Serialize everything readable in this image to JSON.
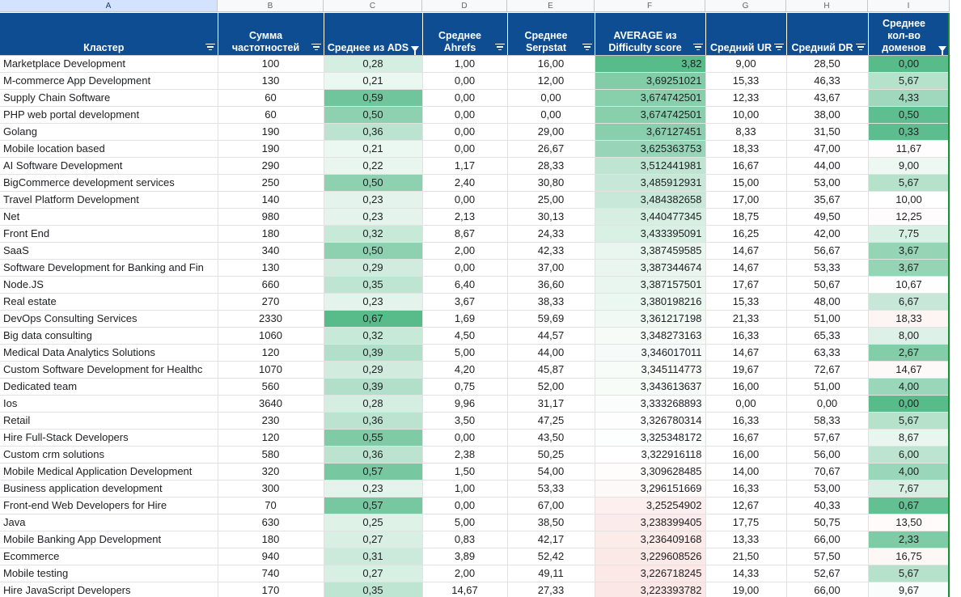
{
  "column_letters": [
    "A",
    "B",
    "C",
    "D",
    "E",
    "F",
    "G",
    "H",
    "I"
  ],
  "headers": [
    {
      "label": "Кластер",
      "filter": "lines"
    },
    {
      "label": "Сумма частотностей",
      "filter": "lines"
    },
    {
      "label": "Среднее из ADS",
      "filter": "funnel"
    },
    {
      "label": "Среднее Ahrefs",
      "filter": "lines"
    },
    {
      "label": "Среднее Serpstat",
      "filter": "lines"
    },
    {
      "label": "AVERAGE из Difficulty score",
      "filter": "lines"
    },
    {
      "label": "Средний UR",
      "filter": "lines"
    },
    {
      "label": "Средний DR",
      "filter": "lines"
    },
    {
      "label": "Среднее кол-во доменов",
      "filter": "funnel"
    }
  ],
  "colors": {
    "header_bg": "#0e4d92",
    "scale_green": "#57bb8a",
    "scale_white": "#ffffff",
    "scale_red": "#e67c73"
  },
  "rows": [
    [
      "Marketplace Development",
      "100",
      "0,28",
      "1,00",
      "16,00",
      "3,82",
      "9,00",
      "28,50",
      "0,00"
    ],
    [
      "M-commerce App Development",
      "130",
      "0,21",
      "0,00",
      "12,00",
      "3,69251021",
      "15,33",
      "46,33",
      "5,67"
    ],
    [
      "Supply Chain Software",
      "60",
      "0,59",
      "0,00",
      "0,00",
      "3,674742501",
      "12,33",
      "43,67",
      "4,33"
    ],
    [
      "PHP web portal development",
      "60",
      "0,50",
      "0,00",
      "0,00",
      "3,674742501",
      "10,00",
      "38,00",
      "0,50"
    ],
    [
      "Golang",
      "190",
      "0,36",
      "0,00",
      "29,00",
      "3,67127451",
      "8,33",
      "31,50",
      "0,33"
    ],
    [
      "Mobile location based",
      "190",
      "0,21",
      "0,00",
      "26,67",
      "3,625363753",
      "18,33",
      "47,00",
      "11,67"
    ],
    [
      "AI Software Development",
      "290",
      "0,22",
      "1,17",
      "28,33",
      "3,512441981",
      "16,67",
      "44,00",
      "9,00"
    ],
    [
      "BigCommerce development services",
      "250",
      "0,50",
      "2,40",
      "30,80",
      "3,485912931",
      "15,00",
      "53,00",
      "5,67"
    ],
    [
      "Travel Platform Development",
      "140",
      "0,23",
      "0,00",
      "25,00",
      "3,484382658",
      "17,00",
      "35,67",
      "10,00"
    ],
    [
      "Net",
      "980",
      "0,23",
      "2,13",
      "30,13",
      "3,440477345",
      "18,75",
      "49,50",
      "12,25"
    ],
    [
      "Front End",
      "180",
      "0,32",
      "8,67",
      "24,33",
      "3,433395091",
      "16,25",
      "42,00",
      "7,75"
    ],
    [
      "SaaS",
      "340",
      "0,50",
      "2,00",
      "42,33",
      "3,387459585",
      "14,67",
      "56,67",
      "3,67"
    ],
    [
      "Software Development for Banking and Fin",
      "130",
      "0,29",
      "0,00",
      "37,00",
      "3,387344674",
      "14,67",
      "53,33",
      "3,67"
    ],
    [
      "Node.JS",
      "660",
      "0,35",
      "6,40",
      "36,60",
      "3,387157501",
      "17,67",
      "50,67",
      "10,67"
    ],
    [
      "Real estate",
      "270",
      "0,23",
      "3,67",
      "38,33",
      "3,380198216",
      "15,33",
      "48,00",
      "6,67"
    ],
    [
      "DevOps Consulting Services",
      "2330",
      "0,67",
      "1,69",
      "59,69",
      "3,361217198",
      "21,33",
      "51,00",
      "18,33"
    ],
    [
      "Big data consulting",
      "1060",
      "0,32",
      "4,50",
      "44,57",
      "3,348273163",
      "16,33",
      "65,33",
      "8,00"
    ],
    [
      "Medical Data Analytics Solutions",
      "120",
      "0,39",
      "5,00",
      "44,00",
      "3,346017011",
      "14,67",
      "63,33",
      "2,67"
    ],
    [
      "Custom Software Development for Healthc",
      "1070",
      "0,29",
      "4,20",
      "45,87",
      "3,345114773",
      "19,67",
      "72,67",
      "14,67"
    ],
    [
      "Dedicated team",
      "560",
      "0,39",
      "0,75",
      "52,00",
      "3,343613637",
      "16,00",
      "51,00",
      "4,00"
    ],
    [
      "Ios",
      "3640",
      "0,28",
      "9,96",
      "31,17",
      "3,333268893",
      "0,00",
      "0,00",
      "0,00"
    ],
    [
      "Retail",
      "230",
      "0,36",
      "3,50",
      "47,25",
      "3,326780314",
      "16,33",
      "58,33",
      "5,67"
    ],
    [
      "Hire Full-Stack Developers",
      "120",
      "0,55",
      "0,00",
      "43,50",
      "3,325348172",
      "16,67",
      "57,67",
      "8,67"
    ],
    [
      "Custom crm solutions",
      "580",
      "0,36",
      "2,38",
      "50,25",
      "3,322916118",
      "16,00",
      "56,00",
      "6,00"
    ],
    [
      "Mobile Medical Application Development",
      "320",
      "0,57",
      "1,50",
      "54,00",
      "3,309628485",
      "14,00",
      "70,67",
      "4,00"
    ],
    [
      "Business application development",
      "300",
      "0,23",
      "1,00",
      "53,33",
      "3,296151669",
      "16,33",
      "53,00",
      "7,67"
    ],
    [
      "Front-end Web Developers for Hire",
      "70",
      "0,57",
      "0,00",
      "67,00",
      "3,25254902",
      "12,67",
      "40,33",
      "0,67"
    ],
    [
      "Java",
      "630",
      "0,25",
      "5,00",
      "38,50",
      "3,238399405",
      "17,75",
      "50,75",
      "13,50"
    ],
    [
      "Mobile Banking App Development",
      "180",
      "0,27",
      "0,83",
      "42,17",
      "3,236409168",
      "13,33",
      "66,00",
      "2,33"
    ],
    [
      "Ecommerce",
      "940",
      "0,31",
      "3,89",
      "52,42",
      "3,229608526",
      "21,50",
      "57,50",
      "16,75"
    ],
    [
      "Mobile testing",
      "740",
      "0,27",
      "2,00",
      "49,11",
      "3,226718245",
      "14,33",
      "52,67",
      "5,67"
    ],
    [
      "Hire JavaScript Developers",
      "170",
      "0,35",
      "14,67",
      "27,33",
      "3,223393782",
      "19,00",
      "66,00",
      "9,67"
    ]
  ]
}
